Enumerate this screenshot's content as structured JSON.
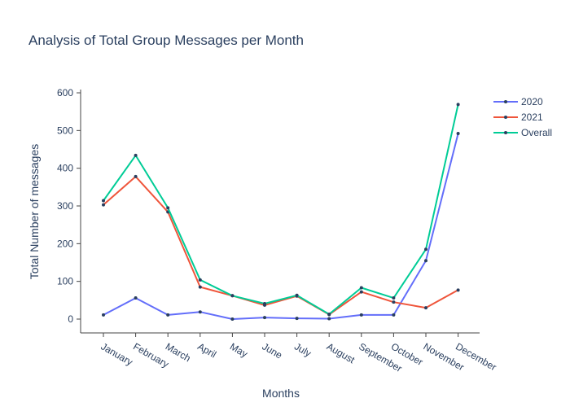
{
  "chart_data": {
    "type": "line",
    "title": "Analysis of Total Group Messages per Month",
    "xlabel": "Months",
    "ylabel": "Total Number of messages",
    "categories": [
      "January",
      "February",
      "March",
      "April",
      "May",
      "June",
      "July",
      "August",
      "September",
      "October",
      "November",
      "December"
    ],
    "ylim": [
      -40,
      610
    ],
    "yticks": [
      0,
      100,
      200,
      300,
      400,
      500,
      600
    ],
    "grid": false,
    "legend_position": "top-right",
    "series": [
      {
        "name": "2020",
        "color": "#636efa",
        "values": [
          11,
          56,
          11,
          19,
          0,
          4,
          2,
          1,
          11,
          11,
          155,
          492
        ]
      },
      {
        "name": "2021",
        "color": "#ef553b",
        "values": [
          303,
          378,
          284,
          85,
          62,
          37,
          61,
          12,
          72,
          45,
          30,
          77
        ]
      },
      {
        "name": "Overall",
        "color": "#00cc96",
        "values": [
          314,
          434,
          295,
          104,
          62,
          41,
          63,
          13,
          83,
          56,
          185,
          569
        ]
      }
    ]
  }
}
